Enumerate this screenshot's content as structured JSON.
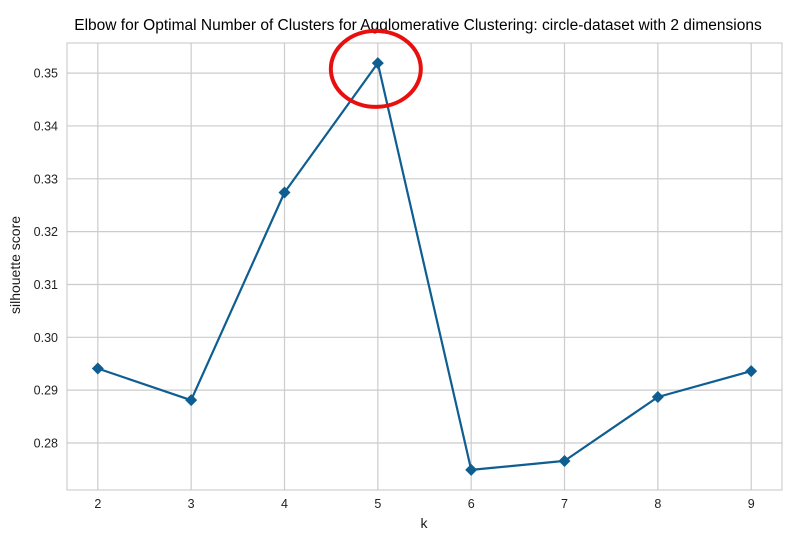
{
  "chart_data": {
    "type": "line",
    "title": "Elbow for Optimal Number of Clusters for Agglomerative Clustering: circle-dataset with 2 dimensions",
    "xlabel": "k",
    "ylabel": "silhouette score",
    "x": [
      2,
      3,
      4,
      5,
      6,
      7,
      8,
      9
    ],
    "series": [
      {
        "name": "silhouette score",
        "values": [
          0.2941,
          0.2881,
          0.3274,
          0.3519,
          0.2749,
          0.2766,
          0.2887,
          0.2936
        ],
        "color": "#0f5e91",
        "marker": "diamond"
      }
    ],
    "xlim": [
      1.67,
      9.33
    ],
    "ylim": [
      0.2711,
      0.3557
    ],
    "xticks": [
      "2",
      "3",
      "4",
      "5",
      "6",
      "7",
      "8",
      "9"
    ],
    "yticks": [
      "0.28",
      "0.29",
      "0.30",
      "0.31",
      "0.32",
      "0.33",
      "0.34",
      "0.35"
    ],
    "ytick_values": [
      0.28,
      0.29,
      0.3,
      0.31,
      0.32,
      0.33,
      0.34,
      0.35
    ],
    "grid": true,
    "annotations": [
      {
        "type": "ellipse",
        "label": "highlight-optimal-k",
        "x": 5,
        "y": 0.3508,
        "color": "#e8100f"
      }
    ],
    "colors": {
      "grid": "#cccccc",
      "spine": "#c6c6c6",
      "line": "#0f5e91",
      "highlight": "#e8100f"
    }
  }
}
